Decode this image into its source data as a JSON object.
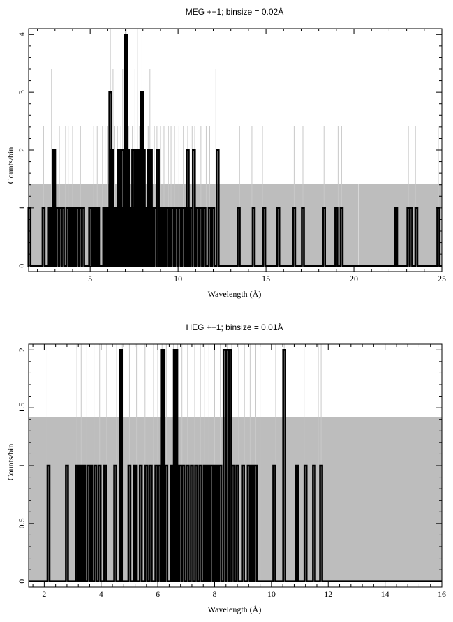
{
  "chart_data": [
    {
      "type": "histogram",
      "title": "MEG +−1; binsize = 0.02Å",
      "xlabel": "Wavelength (Å)",
      "ylabel": "Counts/bin",
      "xlim": [
        1.5,
        25
      ],
      "ylim": [
        -0.1,
        4.1
      ],
      "xticks": [
        5,
        10,
        15,
        20,
        25
      ],
      "yticks": [
        0,
        1,
        2,
        3,
        4
      ],
      "background_model": [
        {
          "x0": 1.5,
          "x1": 20.3,
          "y": 1.42
        },
        {
          "x0": 20.3,
          "x1": 25,
          "y": 1.42
        }
      ],
      "light_series": {
        "color": "#c8c8c8",
        "description_values": "upper error bars",
        "bins": [
          [
            1.55,
            2.42
          ],
          [
            2.35,
            2.42
          ],
          [
            2.8,
            3.4
          ],
          [
            2.95,
            2.42
          ],
          [
            3.25,
            2.42
          ],
          [
            3.6,
            2.42
          ],
          [
            3.75,
            2.42
          ],
          [
            4.0,
            2.42
          ],
          [
            4.45,
            2.42
          ],
          [
            5.2,
            2.42
          ],
          [
            5.4,
            2.42
          ],
          [
            5.7,
            2.42
          ],
          [
            5.85,
            2.42
          ],
          [
            6.0,
            2.42
          ],
          [
            6.15,
            4.1
          ],
          [
            6.3,
            3.4
          ],
          [
            6.4,
            2.42
          ],
          [
            6.55,
            2.42
          ],
          [
            6.75,
            2.42
          ],
          [
            6.85,
            3.4
          ],
          [
            7.0,
            4.1
          ],
          [
            7.05,
            4.1
          ],
          [
            7.2,
            2.42
          ],
          [
            7.4,
            2.42
          ],
          [
            7.55,
            3.4
          ],
          [
            7.7,
            4.1
          ],
          [
            7.8,
            2.42
          ],
          [
            7.95,
            4.1
          ],
          [
            8.05,
            2.42
          ],
          [
            8.3,
            2.42
          ],
          [
            8.4,
            3.4
          ],
          [
            8.65,
            2.42
          ],
          [
            8.8,
            2.42
          ],
          [
            9.0,
            2.42
          ],
          [
            9.2,
            2.42
          ],
          [
            9.45,
            2.42
          ],
          [
            9.6,
            2.42
          ],
          [
            9.8,
            2.42
          ],
          [
            10.05,
            2.42
          ],
          [
            10.3,
            2.42
          ],
          [
            10.55,
            2.42
          ],
          [
            10.8,
            2.42
          ],
          [
            10.95,
            2.42
          ],
          [
            11.3,
            2.42
          ],
          [
            11.6,
            2.42
          ],
          [
            11.8,
            2.42
          ],
          [
            12.15,
            3.4
          ],
          [
            13.5,
            2.42
          ],
          [
            14.2,
            2.42
          ],
          [
            14.8,
            2.42
          ],
          [
            16.6,
            2.42
          ],
          [
            17.1,
            2.42
          ],
          [
            18.3,
            2.42
          ],
          [
            19.1,
            2.42
          ],
          [
            19.3,
            2.42
          ],
          [
            22.4,
            2.42
          ],
          [
            23.1,
            2.42
          ],
          [
            23.5,
            2.42
          ],
          [
            24.8,
            2.42
          ]
        ]
      },
      "counts": [
        [
          1.55,
          1
        ],
        [
          2.35,
          1
        ],
        [
          2.7,
          1
        ],
        [
          2.95,
          2
        ],
        [
          3.0,
          1
        ],
        [
          3.15,
          1
        ],
        [
          3.3,
          1
        ],
        [
          3.45,
          1
        ],
        [
          3.7,
          1
        ],
        [
          3.85,
          1
        ],
        [
          4.0,
          1
        ],
        [
          4.1,
          1
        ],
        [
          4.3,
          1
        ],
        [
          4.45,
          1
        ],
        [
          4.6,
          1
        ],
        [
          5.0,
          1
        ],
        [
          5.2,
          1
        ],
        [
          5.45,
          1
        ],
        [
          5.8,
          1
        ],
        [
          5.9,
          1
        ],
        [
          6.0,
          1
        ],
        [
          6.1,
          1
        ],
        [
          6.15,
          3
        ],
        [
          6.25,
          2
        ],
        [
          6.35,
          1
        ],
        [
          6.45,
          1
        ],
        [
          6.55,
          1
        ],
        [
          6.65,
          2
        ],
        [
          6.75,
          1
        ],
        [
          6.85,
          2
        ],
        [
          6.95,
          1
        ],
        [
          7.05,
          4
        ],
        [
          7.15,
          2
        ],
        [
          7.25,
          1
        ],
        [
          7.35,
          1
        ],
        [
          7.45,
          2
        ],
        [
          7.55,
          1
        ],
        [
          7.65,
          2
        ],
        [
          7.75,
          2
        ],
        [
          7.85,
          1
        ],
        [
          7.95,
          3
        ],
        [
          8.05,
          2
        ],
        [
          8.15,
          1
        ],
        [
          8.25,
          1
        ],
        [
          8.35,
          2
        ],
        [
          8.45,
          2
        ],
        [
          8.55,
          1
        ],
        [
          8.7,
          1
        ],
        [
          8.85,
          2
        ],
        [
          9.0,
          1
        ],
        [
          9.1,
          1
        ],
        [
          9.25,
          1
        ],
        [
          9.4,
          1
        ],
        [
          9.55,
          1
        ],
        [
          9.7,
          1
        ],
        [
          9.9,
          1
        ],
        [
          10.1,
          1
        ],
        [
          10.3,
          1
        ],
        [
          10.45,
          1
        ],
        [
          10.55,
          2
        ],
        [
          10.75,
          1
        ],
        [
          10.9,
          2
        ],
        [
          11.1,
          1
        ],
        [
          11.3,
          1
        ],
        [
          11.5,
          1
        ],
        [
          11.8,
          1
        ],
        [
          12.0,
          1
        ],
        [
          12.25,
          2
        ],
        [
          13.45,
          1
        ],
        [
          14.3,
          1
        ],
        [
          14.9,
          1
        ],
        [
          15.7,
          1
        ],
        [
          16.6,
          1
        ],
        [
          17.1,
          1
        ],
        [
          18.3,
          1
        ],
        [
          19.0,
          1
        ],
        [
          19.3,
          1
        ],
        [
          22.4,
          1
        ],
        [
          23.1,
          1
        ],
        [
          23.25,
          1
        ],
        [
          23.55,
          1
        ],
        [
          24.8,
          1
        ]
      ]
    },
    {
      "type": "histogram",
      "title": "HEG +−1; binsize = 0.01Å",
      "xlabel": "Wavelength (Å)",
      "ylabel": "Counts/bin",
      "xlim": [
        1.45,
        16
      ],
      "ylim": [
        -0.05,
        2.05
      ],
      "xticks": [
        2,
        4,
        6,
        8,
        10,
        12,
        14,
        16
      ],
      "yticks": [
        0,
        0.5,
        1,
        1.5,
        2
      ],
      "background_model": [
        {
          "x0": 1.45,
          "x1": 16,
          "y": 1.42
        }
      ],
      "light_series": {
        "color": "#c8c8c8",
        "bins": [
          [
            2.1,
            2.05
          ],
          [
            3.15,
            2.05
          ],
          [
            3.3,
            2.05
          ],
          [
            3.5,
            2.05
          ],
          [
            3.75,
            2.05
          ],
          [
            3.95,
            2.05
          ],
          [
            4.2,
            2.05
          ],
          [
            4.55,
            2.05
          ],
          [
            4.75,
            2.05
          ],
          [
            5.0,
            2.05
          ],
          [
            5.25,
            2.05
          ],
          [
            5.55,
            2.05
          ],
          [
            5.85,
            2.05
          ],
          [
            6.0,
            2.05
          ],
          [
            6.15,
            2.05
          ],
          [
            6.3,
            2.05
          ],
          [
            6.55,
            2.05
          ],
          [
            6.7,
            2.05
          ],
          [
            6.85,
            2.05
          ],
          [
            7.05,
            2.05
          ],
          [
            7.3,
            2.05
          ],
          [
            7.5,
            2.05
          ],
          [
            7.65,
            2.05
          ],
          [
            7.8,
            2.05
          ],
          [
            8.0,
            2.05
          ],
          [
            8.2,
            2.05
          ],
          [
            8.45,
            2.05
          ],
          [
            8.6,
            2.05
          ],
          [
            8.85,
            2.05
          ],
          [
            9.05,
            2.05
          ],
          [
            9.25,
            2.05
          ],
          [
            9.45,
            2.05
          ],
          [
            9.6,
            2.05
          ],
          [
            10.15,
            2.05
          ],
          [
            10.45,
            2.05
          ],
          [
            10.9,
            2.05
          ],
          [
            11.15,
            2.05
          ],
          [
            11.65,
            2.05
          ],
          [
            11.75,
            2.05
          ]
        ]
      },
      "counts": [
        [
          2.15,
          1
        ],
        [
          2.8,
          1
        ],
        [
          3.15,
          1
        ],
        [
          3.25,
          1
        ],
        [
          3.4,
          1
        ],
        [
          3.55,
          1
        ],
        [
          3.65,
          1
        ],
        [
          3.8,
          1
        ],
        [
          3.95,
          1
        ],
        [
          4.15,
          1
        ],
        [
          4.5,
          1
        ],
        [
          4.7,
          2
        ],
        [
          5.0,
          1
        ],
        [
          5.2,
          1
        ],
        [
          5.4,
          1
        ],
        [
          5.6,
          1
        ],
        [
          5.75,
          1
        ],
        [
          5.95,
          1
        ],
        [
          6.05,
          1
        ],
        [
          6.15,
          2
        ],
        [
          6.2,
          2
        ],
        [
          6.3,
          1
        ],
        [
          6.5,
          1
        ],
        [
          6.6,
          2
        ],
        [
          6.65,
          2
        ],
        [
          6.7,
          1
        ],
        [
          6.8,
          1
        ],
        [
          6.9,
          1
        ],
        [
          7.05,
          1
        ],
        [
          7.2,
          1
        ],
        [
          7.35,
          1
        ],
        [
          7.5,
          1
        ],
        [
          7.65,
          1
        ],
        [
          7.8,
          1
        ],
        [
          7.9,
          1
        ],
        [
          8.05,
          1
        ],
        [
          8.2,
          1
        ],
        [
          8.35,
          2
        ],
        [
          8.45,
          2
        ],
        [
          8.55,
          2
        ],
        [
          8.65,
          1
        ],
        [
          8.8,
          1
        ],
        [
          9.0,
          1
        ],
        [
          9.2,
          1
        ],
        [
          9.35,
          1
        ],
        [
          9.45,
          1
        ],
        [
          10.1,
          1
        ],
        [
          10.45,
          2
        ],
        [
          10.9,
          1
        ],
        [
          11.2,
          1
        ],
        [
          11.5,
          1
        ],
        [
          11.75,
          1
        ]
      ]
    }
  ]
}
